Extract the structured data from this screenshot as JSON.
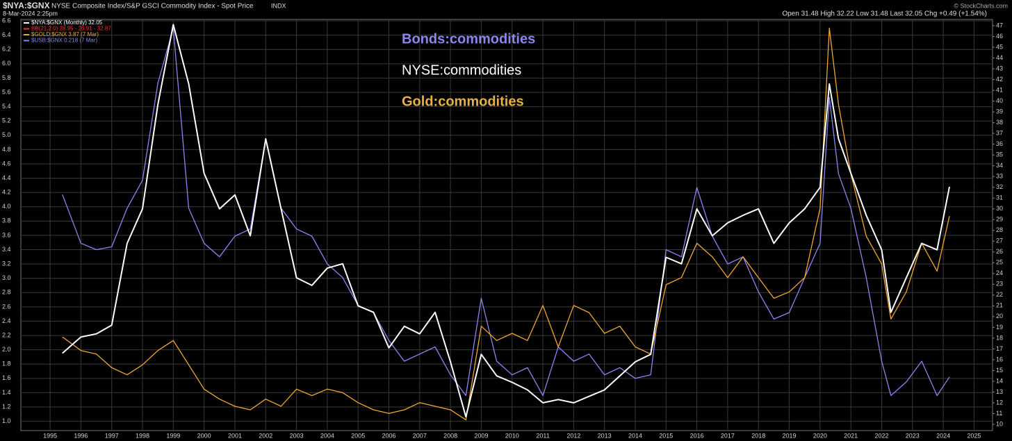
{
  "chart_data": {
    "type": "line",
    "symbol": "$NYA:$GNX",
    "title": "NYSE Composite Index/S&P GSCI Commodity Index - Spot Price",
    "exchange": "INDX",
    "date": "8-Mar-2024 2:25pm",
    "source": "© StockCharts.com",
    "quote": "Open 31.48  High 32.22  Low 31.48  Last 32.05  Chg +0.49 (+1.54%)",
    "legend_lines": [
      {
        "text": "$NYA:$GNX (Monthly) 32.05",
        "color": "#ffffff"
      },
      {
        "text": "BB(21,2.0) 28.95 - 26.91 - 32.87",
        "color": "#ff3030"
      },
      {
        "text": "$GOLD:$GNX 3.87 (7 Mar)",
        "color": "#f0a830"
      },
      {
        "text": "$USB:$GNX 0.218 (7 Mar)",
        "color": "#8c86f0"
      }
    ],
    "annotations": [
      {
        "text": "Bonds:commodities",
        "color": "#8c86f0"
      },
      {
        "text": "NYSE:commodities",
        "color": "#ffffff"
      },
      {
        "text": "Gold:commodities",
        "color": "#e8b040"
      }
    ],
    "grid": true,
    "x": [
      1995.4,
      1996,
      1996.5,
      1997,
      1997.5,
      1998,
      1998.5,
      1999,
      1999.5,
      2000,
      2000.5,
      2001,
      2001.5,
      2002,
      2002.5,
      2003,
      2003.5,
      2004,
      2004.5,
      2005,
      2005.5,
      2006,
      2006.5,
      2007,
      2007.5,
      2008,
      2008.5,
      2009,
      2009.5,
      2010,
      2010.5,
      2011,
      2011.5,
      2012,
      2012.5,
      2013,
      2013.5,
      2014,
      2014.5,
      2015,
      2015.5,
      2016,
      2016.5,
      2017,
      2017.5,
      2018,
      2018.5,
      2019,
      2019.5,
      2020,
      2020.3,
      2020.6,
      2021,
      2021.5,
      2022,
      2022.3,
      2022.8,
      2023.3,
      2023.8,
      2024.2
    ],
    "xlim": [
      1994.05,
      2025.6
    ],
    "xticks": [
      1995,
      1996,
      1997,
      1998,
      1999,
      2000,
      2001,
      2002,
      2003,
      2004,
      2005,
      2006,
      2007,
      2008,
      2009,
      2010,
      2011,
      2012,
      2013,
      2014,
      2015,
      2016,
      2017,
      2018,
      2019,
      2020,
      2021,
      2022,
      2023,
      2024,
      2025
    ],
    "ylim": [
      9.42,
      47.58
    ],
    "yticks": [
      10,
      11,
      12,
      13,
      14,
      15,
      16,
      17,
      18,
      19,
      20,
      21,
      22,
      23,
      24,
      25,
      26,
      27,
      28,
      29,
      30,
      31,
      32,
      33,
      34,
      35,
      36,
      37,
      38,
      39,
      40,
      41,
      42,
      43,
      44,
      45,
      46,
      47
    ],
    "y2lim": [
      0.87,
      6.62
    ],
    "y2ticks": [
      {
        "value": 1,
        "label": "1.0"
      },
      1.2,
      1.4,
      1.6,
      1.8,
      {
        "value": 2,
        "label": "2.0"
      },
      2.2,
      2.4,
      2.6,
      2.8,
      {
        "value": 3,
        "label": "3.0"
      },
      3.2,
      3.4,
      3.6,
      3.8,
      {
        "value": 4,
        "label": "4.0"
      },
      4.2,
      4.4,
      4.6,
      4.8,
      {
        "value": 5,
        "label": "5.0"
      },
      5.2,
      5.4,
      5.6,
      5.8,
      {
        "value": 6,
        "label": "6.0"
      },
      6.2,
      6.4,
      6.6
    ],
    "series": [
      {
        "name": "$USB:$GNX",
        "color": "#8c86f0",
        "axis": "y2",
        "values": [
          4.17,
          3.49,
          3.4,
          3.44,
          3.98,
          4.37,
          5.73,
          6.5,
          3.98,
          3.49,
          3.3,
          3.59,
          3.69,
          4.95,
          3.98,
          3.69,
          3.59,
          3.2,
          3.01,
          2.62,
          2.52,
          2.13,
          1.84,
          1.94,
          2.04,
          1.65,
          1.36,
          2.72,
          1.84,
          1.65,
          1.75,
          1.36,
          2.04,
          1.84,
          1.94,
          1.65,
          1.75,
          1.6,
          1.65,
          3.4,
          3.3,
          4.27,
          3.59,
          3.2,
          3.3,
          2.81,
          2.43,
          2.52,
          3.01,
          3.49,
          5.53,
          4.46,
          3.98,
          3.01,
          1.84,
          1.36,
          1.55,
          1.84,
          1.36,
          1.62
        ]
      },
      {
        "name": "$GOLD:$GNX",
        "color": "#f0a830",
        "axis": "y2",
        "values": [
          2.18,
          1.99,
          1.94,
          1.75,
          1.65,
          1.79,
          1.99,
          2.13,
          1.79,
          1.45,
          1.31,
          1.21,
          1.16,
          1.31,
          1.21,
          1.45,
          1.36,
          1.45,
          1.4,
          1.26,
          1.16,
          1.11,
          1.16,
          1.26,
          1.21,
          1.16,
          1.02,
          2.33,
          2.13,
          2.23,
          2.13,
          2.62,
          2.04,
          2.62,
          2.52,
          2.23,
          2.33,
          2.04,
          1.94,
          2.91,
          3.01,
          3.49,
          3.3,
          3.01,
          3.3,
          3.01,
          2.72,
          2.81,
          3.01,
          3.98,
          6.5,
          5.43,
          4.46,
          3.59,
          3.2,
          2.43,
          2.81,
          3.49,
          3.1,
          3.87
        ]
      },
      {
        "name": "$NYA:$GNX",
        "color": "#ffffff",
        "values": [
          16.6,
          18.1,
          18.4,
          19.2,
          26.8,
          30,
          39.7,
          47.1,
          41.6,
          33.3,
          30,
          31.3,
          27.5,
          36.5,
          30,
          23.6,
          22.9,
          24.5,
          24.9,
          21,
          20.4,
          17.1,
          19.1,
          18.4,
          20.4,
          15.8,
          10.7,
          16.5,
          14.5,
          13.9,
          13.2,
          12,
          12.3,
          12,
          12.6,
          13.2,
          14.5,
          15.8,
          16.5,
          25.5,
          24.9,
          30,
          27.5,
          28.7,
          29.4,
          30,
          26.8,
          28.7,
          30,
          32,
          41.6,
          36.5,
          33.3,
          29.4,
          26.2,
          20.4,
          23.6,
          26.8,
          26.2,
          32.05
        ]
      }
    ]
  }
}
